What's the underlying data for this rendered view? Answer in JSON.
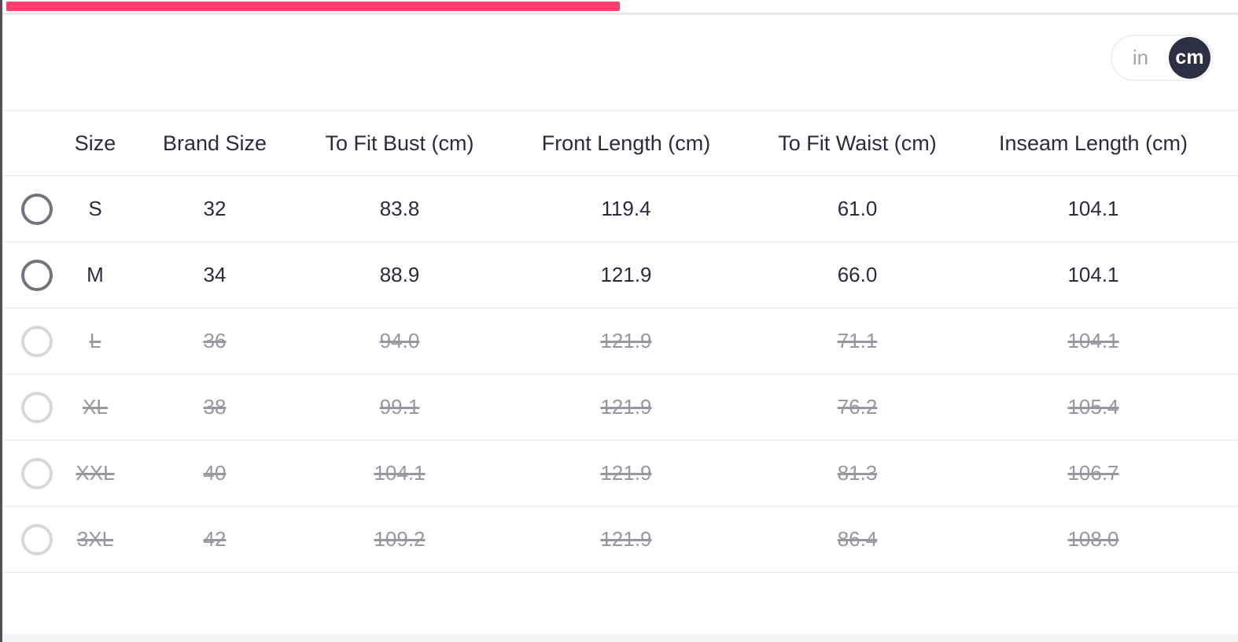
{
  "colors": {
    "accent_pink": "#ff3f6c",
    "dark_navy": "#282c3f",
    "disabled_gray": "#96989f",
    "divider_gray": "#eaeaec",
    "toggle_circle": "#2b3044"
  },
  "unit_toggle": {
    "options": [
      {
        "label": "in",
        "selected": false
      },
      {
        "label": "cm",
        "selected": true
      }
    ]
  },
  "table": {
    "columns": [
      "Size",
      "Brand Size",
      "To Fit Bust (cm)",
      "Front Length (cm)",
      "To Fit Waist (cm)",
      "Inseam Length (cm)"
    ],
    "rows": [
      {
        "size": "S",
        "brand_size": "32",
        "to_fit_bust": "83.8",
        "front_length": "119.4",
        "to_fit_waist": "61.0",
        "inseam_length": "104.1",
        "available": true
      },
      {
        "size": "M",
        "brand_size": "34",
        "to_fit_bust": "88.9",
        "front_length": "121.9",
        "to_fit_waist": "66.0",
        "inseam_length": "104.1",
        "available": true
      },
      {
        "size": "L",
        "brand_size": "36",
        "to_fit_bust": "94.0",
        "front_length": "121.9",
        "to_fit_waist": "71.1",
        "inseam_length": "104.1",
        "available": false
      },
      {
        "size": "XL",
        "brand_size": "38",
        "to_fit_bust": "99.1",
        "front_length": "121.9",
        "to_fit_waist": "76.2",
        "inseam_length": "105.4",
        "available": false
      },
      {
        "size": "XXL",
        "brand_size": "40",
        "to_fit_bust": "104.1",
        "front_length": "121.9",
        "to_fit_waist": "81.3",
        "inseam_length": "106.7",
        "available": false
      },
      {
        "size": "3XL",
        "brand_size": "42",
        "to_fit_bust": "109.2",
        "front_length": "121.9",
        "to_fit_waist": "86.4",
        "inseam_length": "108.0",
        "available": false
      }
    ]
  }
}
